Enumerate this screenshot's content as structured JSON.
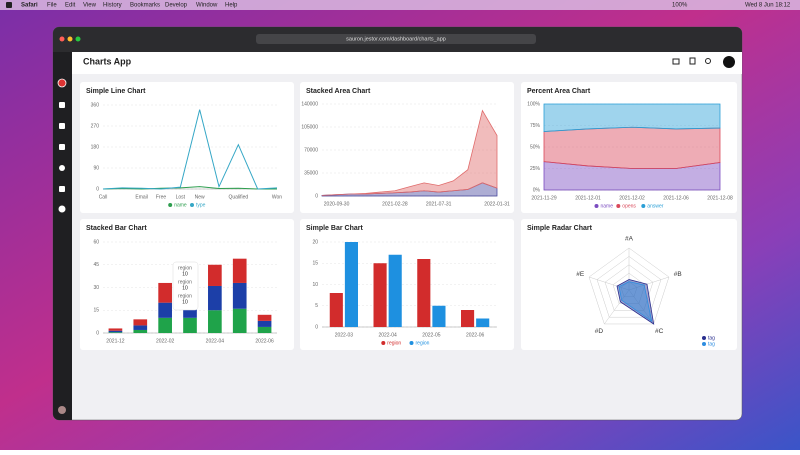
{
  "menu_bar": {
    "app": "Safari",
    "items": [
      "File",
      "Edit",
      "View",
      "History",
      "Bookmarks",
      "Develop",
      "Window",
      "Help"
    ],
    "battery": "100%",
    "clock": "Wed 8 Jun  18:12"
  },
  "browser": {
    "url": "sauron.jestor.com/dashboard/charts_app"
  },
  "header": {
    "title": "Charts App"
  },
  "chart_data": [
    {
      "type": "line",
      "title": "Simple Line Chart",
      "categories": [
        "Call",
        null,
        "Email",
        "Free",
        "Lost",
        "New",
        null,
        "Qualified",
        null,
        "Won"
      ],
      "series": [
        {
          "name": "name",
          "color": "#2e9e4f",
          "values": [
            0,
            2,
            0,
            3,
            5,
            10,
            2,
            3,
            0,
            0
          ]
        },
        {
          "name": "type",
          "color": "#35a7c6",
          "values": [
            0,
            5,
            3,
            0,
            8,
            340,
            10,
            190,
            0,
            5
          ]
        }
      ],
      "ylim": [
        0,
        360
      ],
      "yticks": [
        0,
        90,
        180,
        270,
        360
      ],
      "grid": true,
      "legend": "bottom"
    },
    {
      "type": "area",
      "stacked": true,
      "title": "Stacked Area Chart",
      "categories": [
        null,
        "2020-09-30",
        null,
        null,
        null,
        "2021-02-28",
        null,
        null,
        "2021-07-31",
        null,
        null,
        null,
        "2022-01-31"
      ],
      "series": [
        {
          "color": "#4b4ba0",
          "values": [
            1000,
            2000,
            3000,
            3000,
            4000,
            5000,
            6000,
            8000,
            6000,
            8000,
            10000,
            20000,
            12000
          ]
        },
        {
          "color": "#e06b6b",
          "values": [
            0,
            0,
            0,
            1000,
            2000,
            3000,
            8000,
            12000,
            10000,
            15000,
            30000,
            110000,
            80000
          ]
        }
      ],
      "ylim": [
        0,
        140000
      ],
      "yticks": [
        0,
        35000,
        70000,
        105000,
        140000
      ],
      "grid": true
    },
    {
      "type": "area",
      "stacked": true,
      "title": "Percent Area Chart",
      "categories": [
        "2021-11-29",
        "2021-12-01",
        "2021-12-02",
        "2021-12-06",
        "2021-12-08"
      ],
      "series": [
        {
          "name": "name",
          "color": "#7b4cc0",
          "values": [
            33,
            28,
            25,
            25,
            32
          ]
        },
        {
          "name": "opens",
          "color": "#d9485a",
          "values": [
            35,
            43,
            48,
            46,
            40
          ]
        },
        {
          "name": "answer",
          "color": "#2a9fd6",
          "values": [
            32,
            29,
            27,
            29,
            28
          ]
        }
      ],
      "ylim": [
        0,
        100
      ],
      "yticks": [
        {
          "value": 0,
          "label": "0%"
        },
        {
          "value": 25,
          "label": "25%"
        },
        {
          "value": 50,
          "label": "50%"
        },
        {
          "value": 75,
          "label": "75%"
        },
        {
          "value": 100,
          "label": "100%"
        }
      ],
      "grid": true,
      "legend": "bottom"
    },
    {
      "type": "bar",
      "stacked": true,
      "title": "Stacked Bar Chart",
      "categories": [
        "2021-12",
        null,
        "2022-02",
        null,
        "2022-04",
        null,
        "2022-06"
      ],
      "series": [
        {
          "color": "#1fa34a",
          "values": [
            0.5,
            2,
            10,
            10,
            15,
            16,
            4
          ]
        },
        {
          "color": "#1c3fa8",
          "values": [
            1,
            3,
            10,
            10,
            16,
            17,
            4
          ]
        },
        {
          "color": "#d22c2c",
          "values": [
            1.5,
            4,
            13,
            10,
            14,
            16,
            4
          ]
        }
      ],
      "ylim": [
        0,
        60
      ],
      "yticks": [
        0,
        15,
        30,
        45,
        60
      ],
      "grid": true,
      "tooltip": [
        {
          "label": "region",
          "value": "10"
        },
        {
          "label": "region",
          "value": "10"
        },
        {
          "label": "region",
          "value": "10"
        }
      ]
    },
    {
      "type": "bar",
      "title": "Simple Bar Chart",
      "categories": [
        "2022-03",
        "2022-04",
        "2022-05",
        "2022-06"
      ],
      "series": [
        {
          "name": "region",
          "color": "#d22c2c",
          "values": [
            8,
            15,
            16,
            4
          ]
        },
        {
          "name": "region",
          "color": "#1e90e0",
          "values": [
            20,
            17,
            5,
            2
          ]
        }
      ],
      "ylim": [
        0,
        20
      ],
      "yticks": [
        0,
        5,
        10,
        15,
        20
      ],
      "grid": true,
      "legend": "bottom"
    },
    {
      "type": "radar",
      "title": "Simple Radar Chart",
      "categories": [
        "#A",
        "#B",
        "#C",
        "#D",
        "#E"
      ],
      "series": [
        {
          "name": "tag",
          "color": "#2a2f8f",
          "values": [
            25,
            45,
            100,
            35,
            30
          ]
        },
        {
          "name": "tag",
          "color": "#2e8de0",
          "values": [
            20,
            38,
            92,
            30,
            25
          ]
        }
      ],
      "rlim": [
        0,
        100
      ],
      "legend": "bottom-right"
    }
  ]
}
